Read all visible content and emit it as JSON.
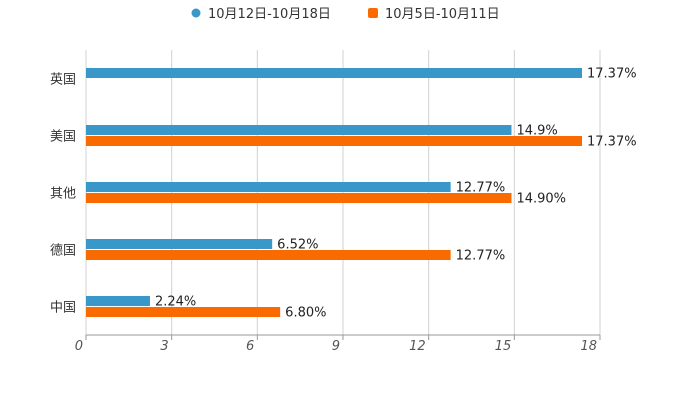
{
  "chart_data": {
    "type": "bar",
    "orientation": "horizontal",
    "title": "",
    "xlabel": "",
    "ylabel": "",
    "categories": [
      "英国",
      "美国",
      "其他",
      "德国",
      "中国"
    ],
    "series": [
      {
        "name": "10月12日-10月18日",
        "color": "#3A97C9",
        "values": [
          17.37,
          14.9,
          12.77,
          6.52,
          2.24
        ],
        "labels": [
          "17.37%",
          "14.9%",
          "12.77%",
          "6.52%",
          "2.24%"
        ]
      },
      {
        "name": "10月5日-10月11日",
        "color": "#F96A00",
        "values": [
          null,
          17.37,
          14.9,
          12.77,
          6.8
        ],
        "labels": [
          null,
          "17.37%",
          "14.90%",
          "12.77%",
          "6.80%"
        ]
      }
    ],
    "xlim": [
      0,
      18
    ],
    "xticks": [
      "0",
      "3",
      "6",
      "9",
      "12",
      "15",
      "18"
    ],
    "grid": "vertical",
    "legend_position": "top-center"
  }
}
